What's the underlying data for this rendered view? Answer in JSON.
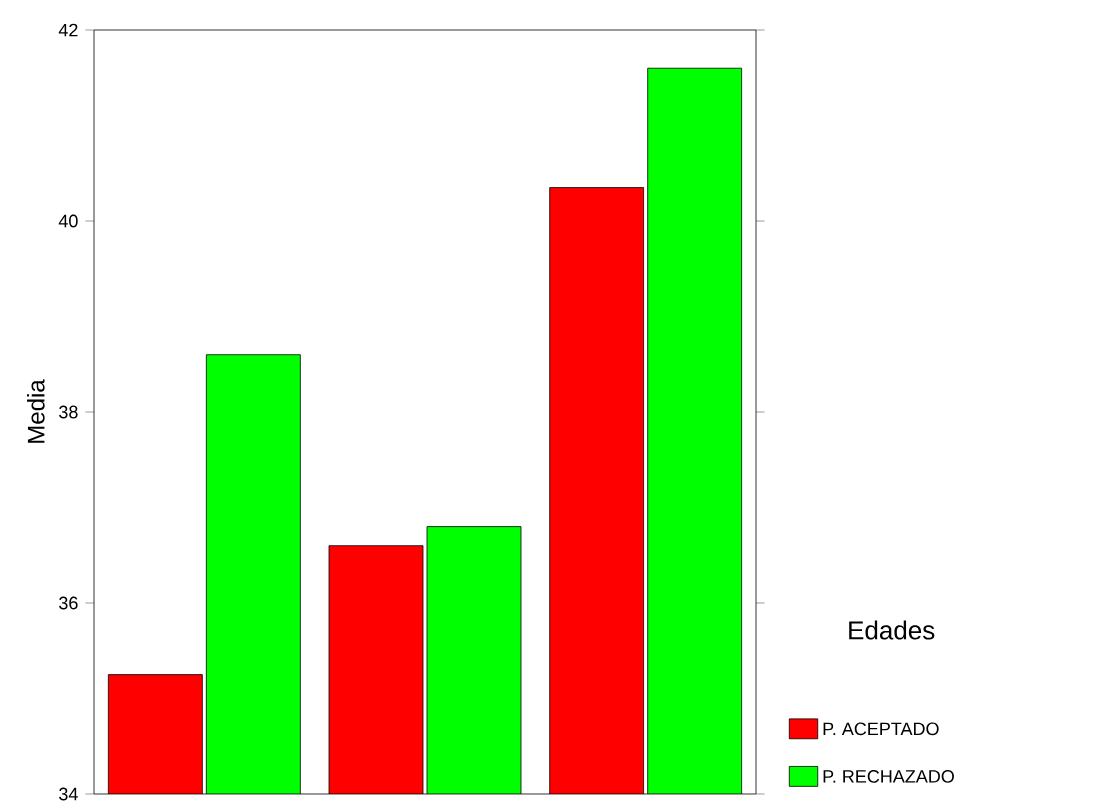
{
  "chart_data": {
    "type": "bar",
    "ylabel": "Media",
    "legend_title": "Edades",
    "categories": [
      null,
      null,
      null
    ],
    "series": [
      {
        "name": "P. ACEPTADO",
        "color": "#ff0000",
        "values": [
          35.25,
          36.6,
          40.35
        ]
      },
      {
        "name": "P. RECHAZADO",
        "color": "#00ff00",
        "values": [
          38.6,
          36.8,
          41.6
        ]
      }
    ],
    "ylim": [
      34,
      42
    ],
    "yticks": [
      34,
      36,
      38,
      40,
      42
    ],
    "legend": "right"
  }
}
